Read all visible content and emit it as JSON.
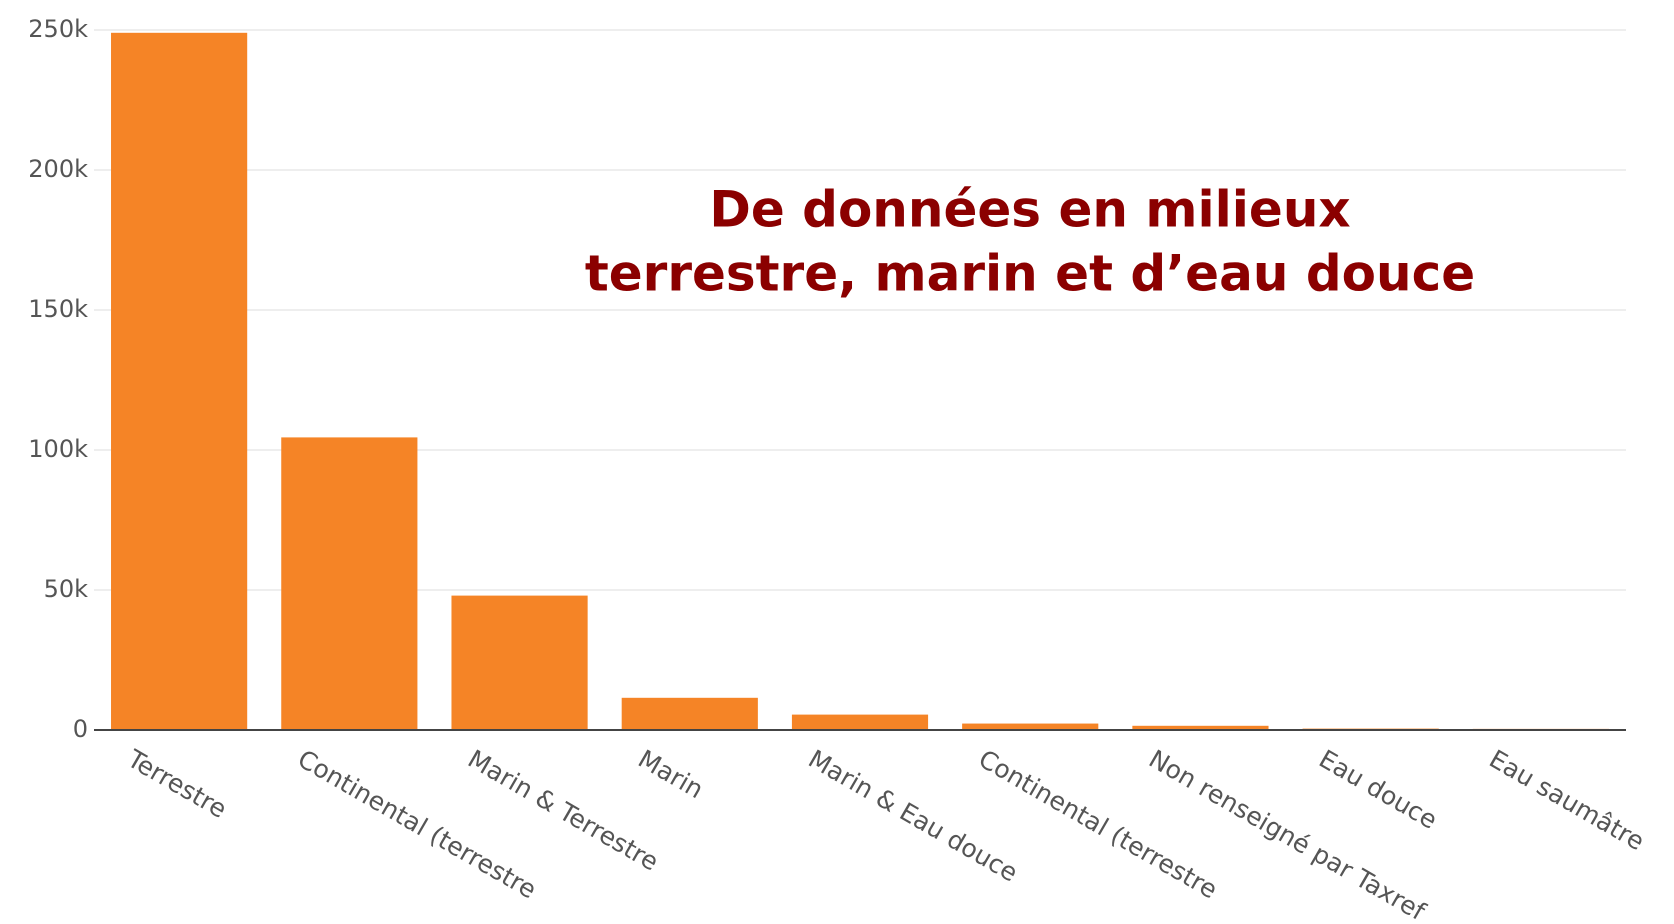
{
  "chart_data": {
    "type": "bar",
    "annotation": [
      "De données en milieux",
      "terrestre, marin et d’eau douce"
    ],
    "categories": [
      "Terrestre",
      "Continental (terrestre",
      "Marin & Terrestre",
      "Marin",
      "Marin & Eau douce",
      "Continental (terrestre",
      "Non renseigné par Taxref",
      "Eau douce",
      "Eau saumâtre"
    ],
    "values": [
      249000,
      104500,
      48000,
      11500,
      5500,
      2300,
      1500,
      500,
      400
    ],
    "color": "#f58426",
    "ylim": [
      0,
      250000
    ],
    "yticks": [
      0,
      {
        "value": 50000,
        "label": "50k"
      },
      {
        "value": 100000,
        "label": "100k"
      },
      {
        "value": 150000,
        "label": "150k"
      },
      {
        "value": 200000,
        "label": "200k"
      },
      {
        "value": 250000,
        "label": "250k"
      }
    ],
    "grid": true
  }
}
